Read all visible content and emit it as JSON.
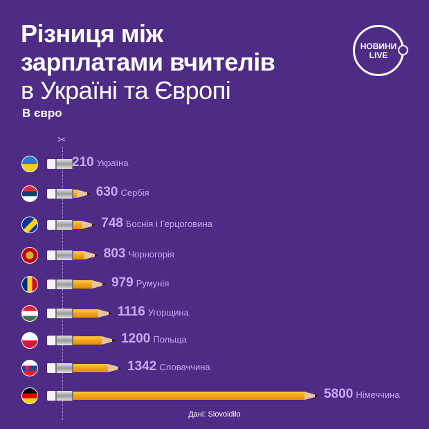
{
  "header": {
    "title_line1": "Різниця між",
    "title_line2": "зарплатами вчителів",
    "title_line3": "в Україні та Європі",
    "subtitle": "В євро"
  },
  "logo": {
    "line1": "НОВИНИ",
    "line2": "LIVE"
  },
  "source": "Дані: Slovoidilo",
  "chart_data": {
    "type": "bar",
    "title": "Різниця між зарплатами вчителів в Україні та Європі",
    "ylabel": "В євро",
    "categories": [
      "Україна",
      "Сербія",
      "Боснія і Герцоговина",
      "Чорногорія",
      "Румунія",
      "Угорщина",
      "Польща",
      "Словаччина",
      "Німеччина"
    ],
    "values": [
      210,
      630,
      748,
      803,
      979,
      1116,
      1200,
      1342,
      5800
    ],
    "flags": [
      [
        "#2d7bd1",
        "#f5cc1b"
      ],
      [
        "#c6363c",
        "#0c4076",
        "#ffffff"
      ],
      [
        "#0035a0",
        "#ffd200"
      ],
      [
        "#c40308",
        "#d4af3a"
      ],
      [
        "#002b7f",
        "#fcd116",
        "#ce1126"
      ],
      [
        "#ce2939",
        "#ffffff",
        "#477050"
      ],
      [
        "#ffffff",
        "#dc143c"
      ],
      [
        "#ffffff",
        "#0b4ea2",
        "#ee1c25"
      ],
      [
        "#000000",
        "#dd0000",
        "#ffce00"
      ]
    ],
    "bar_color": "#f3a417"
  }
}
